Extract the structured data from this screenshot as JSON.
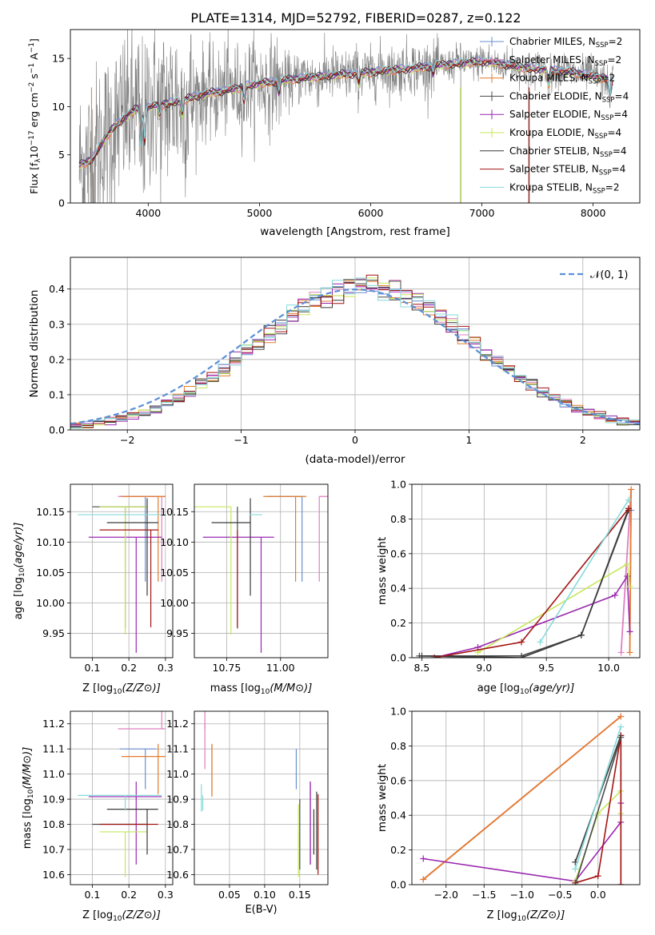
{
  "figure": {
    "title": "PLATE=1314, MJD=52792, FIBERID=0287, z=0.122"
  },
  "colors": {
    "chabrier_miles": "#6a8fd2",
    "salpeter_miles": "#e07fc0",
    "kroupa_miles": "#e37b2e",
    "chabrier_elodie": "#4a4a4a",
    "salpeter_elodie": "#9a27b0",
    "kroupa_elodie": "#c5e85a",
    "chabrier_stelib": "#3a3a3a",
    "salpeter_stelib": "#a31414",
    "kroupa_stelib": "#86dada",
    "data": "#808080",
    "normal": "#5b8fd6"
  },
  "legend_spectrum": [
    {
      "label": "Chabrier MILES, N",
      "sub": "SSP",
      "suffix": "=2",
      "color_key": "chabrier_miles"
    },
    {
      "label": "Salpeter MILES, N",
      "sub": "SSP",
      "suffix": "=2",
      "color_key": "salpeter_miles"
    },
    {
      "label": "Kroupa MILES, N",
      "sub": "SSP",
      "suffix": "=2",
      "color_key": "kroupa_miles"
    },
    {
      "label": "Chabrier ELODIE, N",
      "sub": "SSP",
      "suffix": "=4",
      "color_key": "chabrier_elodie"
    },
    {
      "label": "Salpeter ELODIE, N",
      "sub": "SSP",
      "suffix": "=4",
      "color_key": "salpeter_elodie"
    },
    {
      "label": "Kroupa ELODIE, N",
      "sub": "SSP",
      "suffix": "=4",
      "color_key": "kroupa_elodie"
    },
    {
      "label": "Chabrier STELIB, N",
      "sub": "SSP",
      "suffix": "=4",
      "color_key": "chabrier_stelib"
    },
    {
      "label": "Salpeter STELIB, N",
      "sub": "SSP",
      "suffix": "=4",
      "color_key": "salpeter_stelib"
    },
    {
      "label": "Kroupa STELIB, N",
      "sub": "SSP",
      "suffix": "=2",
      "color_key": "kroupa_stelib"
    }
  ],
  "chart_data": [
    {
      "id": "spectrum",
      "type": "line",
      "xlabel": "wavelength [Angstrom, rest frame]",
      "ylabel": "Flux [f",
      "ylabel_parts": [
        "Flux [f",
        "λ",
        "10",
        "−17",
        " erg cm",
        "−2",
        " s",
        "−1",
        " A",
        "−1",
        "]"
      ],
      "xlim": [
        3300,
        8420
      ],
      "ylim": [
        0,
        18
      ],
      "xticks": [
        4000,
        5000,
        6000,
        7000,
        8000
      ],
      "yticks": [
        0,
        5,
        10,
        15
      ],
      "grid": false,
      "legend": "upper-right",
      "model_continuum": {
        "x": [
          3380,
          3500,
          3600,
          3700,
          3800,
          3900,
          4000,
          4100,
          4200,
          4300,
          4400,
          4500,
          4600,
          4700,
          4800,
          4900,
          5000,
          5200,
          5400,
          5600,
          5800,
          6000,
          6200,
          6400,
          6600,
          6800,
          7000,
          7200,
          7400,
          7600,
          7800,
          8000,
          8200
        ],
        "y": [
          3.9,
          4.6,
          6.5,
          8.0,
          9.0,
          9.8,
          10.0,
          10.2,
          10.4,
          10.6,
          11.0,
          11.3,
          11.5,
          11.7,
          11.9,
          12.2,
          12.4,
          12.7,
          13.0,
          13.2,
          13.4,
          13.6,
          13.8,
          14.0,
          14.3,
          14.5,
          14.7,
          14.4,
          14.0,
          13.8,
          13.6,
          13.2,
          12.7
        ]
      }
    },
    {
      "id": "residuals",
      "type": "histogram",
      "xlabel": "(data-model)/error",
      "ylabel": "Normed distribution",
      "xlim": [
        -2.5,
        2.5
      ],
      "ylim": [
        0,
        0.49
      ],
      "xticks": [
        -2,
        -1,
        0,
        1,
        2
      ],
      "yticks": [
        0.0,
        0.1,
        0.2,
        0.3,
        0.4
      ],
      "grid": true,
      "legend": "upper-right",
      "normal_label": "𝒩(0, 1)",
      "bin_width": 0.1,
      "bin_start": -2.5
    },
    {
      "id": "age_vs_Z",
      "type": "errorbar",
      "xlabel": "Z [log",
      "ylabel": "age  [log",
      "xlim": [
        0.04,
        0.32
      ],
      "ylim": [
        9.91,
        10.195
      ],
      "xticks": [
        0.1,
        0.2,
        0.3
      ],
      "yticks": [
        9.95,
        10.0,
        10.05,
        10.1,
        10.15
      ],
      "grid": true
    },
    {
      "id": "age_vs_mass",
      "type": "errorbar",
      "xlabel": "mass [log",
      "ylabel": "",
      "xlim": [
        10.6,
        11.22
      ],
      "ylim": [
        9.91,
        10.195
      ],
      "xticks": [
        10.75,
        11.0
      ],
      "yticks": [
        9.95,
        10.0,
        10.05,
        10.1,
        10.15
      ],
      "grid": true
    },
    {
      "id": "massweight_vs_age",
      "type": "line",
      "xlabel": "age  [log",
      "ylabel": "mass weight",
      "xlim": [
        8.42,
        10.25
      ],
      "ylim": [
        0,
        1.0
      ],
      "xticks": [
        8.5,
        9.0,
        9.5,
        10.0
      ],
      "yticks": [
        0.0,
        0.2,
        0.4,
        0.6,
        0.8,
        1.0
      ],
      "grid": true,
      "series": [
        {
          "color_key": "chabrier_miles",
          "x": [
            10.17,
            10.18
          ],
          "y": [
            0.15,
            0.85
          ]
        },
        {
          "color_key": "salpeter_miles",
          "x": [
            10.1,
            10.18
          ],
          "y": [
            0.03,
            0.97
          ]
        },
        {
          "color_key": "kroupa_miles",
          "x": [
            10.17,
            10.18
          ],
          "y": [
            0.03,
            0.97
          ]
        },
        {
          "color_key": "chabrier_elodie",
          "x": [
            8.48,
            9.3,
            9.78,
            10.16
          ],
          "y": [
            0.01,
            0.01,
            0.13,
            0.85
          ]
        },
        {
          "color_key": "salpeter_elodie",
          "x": [
            8.6,
            8.95,
            10.05,
            10.15,
            10.17
          ],
          "y": [
            0.0,
            0.06,
            0.36,
            0.47,
            0.15
          ]
        },
        {
          "color_key": "kroupa_elodie",
          "x": [
            8.95,
            10.15,
            10.17
          ],
          "y": [
            0.03,
            0.54,
            0.41
          ]
        },
        {
          "color_key": "chabrier_stelib",
          "x": [
            8.5,
            9.3,
            9.78,
            10.16
          ],
          "y": [
            0.01,
            0.0,
            0.13,
            0.86
          ]
        },
        {
          "color_key": "salpeter_stelib",
          "x": [
            8.6,
            9.3,
            10.16
          ],
          "y": [
            0.0,
            0.09,
            0.86
          ]
        },
        {
          "color_key": "kroupa_stelib",
          "x": [
            9.45,
            10.16
          ],
          "y": [
            0.09,
            0.91
          ]
        }
      ]
    },
    {
      "id": "mass_vs_Z",
      "type": "errorbar",
      "xlabel": "Z [log",
      "ylabel": "mass [log",
      "xlim": [
        0.04,
        0.32
      ],
      "ylim": [
        10.56,
        11.25
      ],
      "xticks": [
        0.1,
        0.2,
        0.3
      ],
      "yticks": [
        10.6,
        10.7,
        10.8,
        10.9,
        11.0,
        11.1,
        11.2
      ],
      "grid": true
    },
    {
      "id": "mass_vs_ebv",
      "type": "errorbar",
      "xlabel": "E(B-V)",
      "ylabel": "",
      "xlim": [
        0.0,
        0.19
      ],
      "ylim": [
        10.56,
        11.25
      ],
      "xticks": [
        0.05,
        0.1,
        0.15
      ],
      "yticks": [
        10.6,
        10.7,
        10.8,
        10.9,
        11.0,
        11.1,
        11.2
      ],
      "grid": true
    },
    {
      "id": "massweight_vs_Z",
      "type": "line",
      "xlabel": "Z [log",
      "ylabel": "mass weight",
      "xlim": [
        -2.45,
        0.55
      ],
      "ylim": [
        0,
        1.0
      ],
      "xticks": [
        -2.0,
        -1.5,
        -1.0,
        -0.5,
        0.0
      ],
      "yticks": [
        0.0,
        0.2,
        0.4,
        0.6,
        0.8,
        1.0
      ],
      "grid": true,
      "series": [
        {
          "color_key": "salpeter_miles",
          "x": [
            -2.3,
            0.3
          ],
          "y": [
            0.03,
            0.97
          ]
        },
        {
          "color_key": "kroupa_miles",
          "x": [
            -2.3,
            0.3
          ],
          "y": [
            0.03,
            0.97
          ]
        },
        {
          "color_key": "salpeter_elodie",
          "x": [
            -2.3,
            -0.3,
            0.3,
            0.3
          ],
          "y": [
            0.15,
            0.02,
            0.36,
            0.47
          ]
        },
        {
          "color_key": "kroupa_elodie",
          "x": [
            -0.3,
            0.0,
            0.3,
            0.3
          ],
          "y": [
            0.02,
            0.41,
            0.54,
            0.41
          ]
        },
        {
          "color_key": "chabrier_stelib",
          "x": [
            -0.3,
            0.3,
            0.3
          ],
          "y": [
            0.13,
            0.86,
            0.0
          ]
        },
        {
          "color_key": "salpeter_stelib",
          "x": [
            -0.3,
            0.0,
            0.3,
            0.3
          ],
          "y": [
            0.01,
            0.05,
            0.86,
            0.0
          ]
        },
        {
          "color_key": "kroupa_stelib",
          "x": [
            -0.3,
            0.3
          ],
          "y": [
            0.09,
            0.91
          ]
        },
        {
          "color_key": "chabrier_elodie",
          "x": [
            -0.3,
            0.3
          ],
          "y": [
            0.0,
            0.85
          ]
        }
      ]
    }
  ],
  "errorbars": [
    {
      "color_key": "chabrier_miles",
      "Z": 0.245,
      "Zerr": [
        0.07,
        0.03
      ],
      "age": 10.175,
      "ageerr": [
        0.14,
        0.0
      ],
      "mass": 11.1,
      "masserr": [
        0.16,
        0.0
      ],
      "ebv": 0.145,
      "ebverr": [
        0.0,
        0.0
      ]
    },
    {
      "color_key": "salpeter_miles",
      "Z": 0.29,
      "Zerr": [
        0.12,
        0.01
      ],
      "age": 10.175,
      "ageerr": [
        0.14,
        0.0
      ],
      "mass": 11.18,
      "masserr": [
        0.0,
        0.08
      ],
      "ebv": 0.015,
      "ebverr": [
        0.0,
        0.0
      ]
    },
    {
      "color_key": "kroupa_miles",
      "Z": 0.28,
      "Zerr": [
        0.1,
        0.02
      ],
      "age": 10.175,
      "ageerr": [
        0.14,
        0.0
      ],
      "mass": 11.07,
      "masserr": [
        0.15,
        0.05
      ],
      "ebv": 0.025,
      "ebverr": [
        0.0,
        0.0
      ]
    },
    {
      "color_key": "chabrier_elodie",
      "Z": 0.19,
      "Zerr": [
        0.09,
        0.06
      ],
      "age": 10.158,
      "ageerr": [
        0.2,
        0.0
      ],
      "mass": 10.8,
      "masserr": [
        0.0,
        0.0
      ],
      "ebv": 0.15,
      "ebverr": [
        0.0,
        0.0
      ]
    },
    {
      "color_key": "salpeter_elodie",
      "Z": 0.22,
      "Zerr": [
        0.13,
        0.07
      ],
      "age": 10.108,
      "ageerr": [
        0.19,
        0.0
      ],
      "mass": 10.91,
      "masserr": [
        0.27,
        0.06
      ],
      "ebv": 0.165,
      "ebverr": [
        0.0,
        0.0
      ]
    },
    {
      "color_key": "kroupa_elodie",
      "Z": 0.19,
      "Zerr": [
        0.07,
        0.06
      ],
      "age": 10.158,
      "ageerr": [
        0.21,
        0.0
      ],
      "mass": 10.77,
      "masserr": [
        0.18,
        0.0
      ],
      "ebv": 0.148,
      "ebverr": [
        0.0,
        0.0
      ]
    },
    {
      "color_key": "chabrier_stelib",
      "Z": 0.25,
      "Zerr": [
        0.11,
        0.03
      ],
      "age": 10.132,
      "ageerr": [
        0.12,
        0.04
      ],
      "mass": 10.86,
      "masserr": [
        0.18,
        0.0
      ],
      "ebv": 0.17,
      "ebverr": [
        0.0,
        0.0
      ]
    },
    {
      "color_key": "salpeter_stelib",
      "Z": 0.26,
      "Zerr": [
        0.14,
        0.02
      ],
      "age": 10.12,
      "ageerr": [
        0.16,
        0.0
      ],
      "mass": 10.8,
      "masserr": [
        0.0,
        0.0
      ],
      "ebv": 0.175,
      "ebverr": [
        0.0,
        0.0
      ]
    },
    {
      "color_key": "kroupa_stelib",
      "Z": 0.19,
      "Zerr": [
        0.13,
        0.1
      ],
      "age": 10.145,
      "ageerr": [
        0.0,
        0.0
      ],
      "mass": 10.915,
      "masserr": [
        0.06,
        0.0
      ],
      "ebv": 0.012,
      "ebverr": [
        0.0,
        0.0
      ]
    }
  ]
}
